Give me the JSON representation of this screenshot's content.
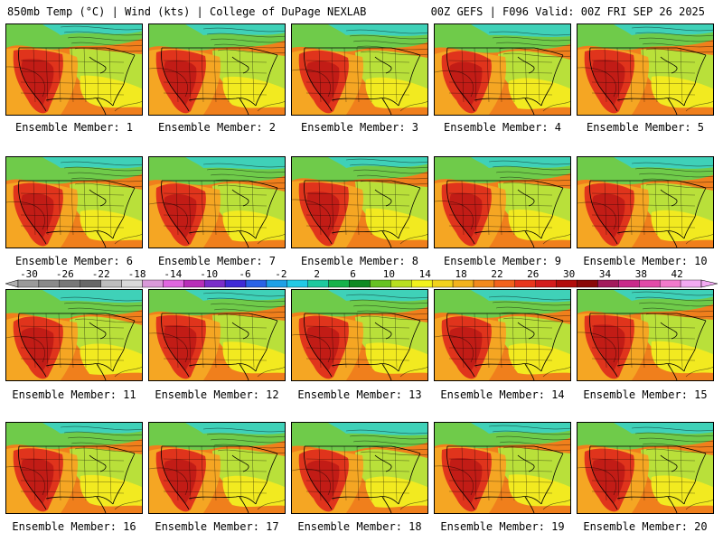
{
  "header": {
    "title_left": "850mb Temp (°C) | Wind (kts) | College of DuPage NEXLAB",
    "title_right": "00Z GEFS | F096 Valid: 00Z FRI SEP 26 2025"
  },
  "panels": [
    {
      "label": "Ensemble Member: 1"
    },
    {
      "label": "Ensemble Member: 2"
    },
    {
      "label": "Ensemble Member: 3"
    },
    {
      "label": "Ensemble Member: 4"
    },
    {
      "label": "Ensemble Member: 5"
    },
    {
      "label": "Ensemble Member: 6"
    },
    {
      "label": "Ensemble Member: 7"
    },
    {
      "label": "Ensemble Member: 8"
    },
    {
      "label": "Ensemble Member: 9"
    },
    {
      "label": "Ensemble Member: 10"
    },
    {
      "label": "Ensemble Member: 11"
    },
    {
      "label": "Ensemble Member: 12"
    },
    {
      "label": "Ensemble Member: 13"
    },
    {
      "label": "Ensemble Member: 14"
    },
    {
      "label": "Ensemble Member: 15"
    },
    {
      "label": "Ensemble Member: 16"
    },
    {
      "label": "Ensemble Member: 17"
    },
    {
      "label": "Ensemble Member: 18"
    },
    {
      "label": "Ensemble Member: 19"
    },
    {
      "label": "Ensemble Member: 20"
    }
  ],
  "colorbar": {
    "ticks": [
      "-30",
      "-26",
      "-22",
      "-18",
      "-14",
      "-10",
      "-6",
      "-2",
      "2",
      "6",
      "10",
      "14",
      "18",
      "22",
      "26",
      "30",
      "34",
      "38",
      "42"
    ],
    "colors": [
      "#9a9a9a",
      "#8a8a8a",
      "#787878",
      "#686868",
      "#bdbdbd",
      "#d9d9d9",
      "#d999d9",
      "#e066e0",
      "#b82eb8",
      "#7a2dc9",
      "#3f2ad6",
      "#2a62e6",
      "#1ea0e6",
      "#22c9e6",
      "#1ec99e",
      "#16b24a",
      "#0e8a22",
      "#66c222",
      "#b8e020",
      "#f2f21c",
      "#f2d21c",
      "#f2b21c",
      "#f28a1c",
      "#f2621c",
      "#e8361c",
      "#d31c1c",
      "#b20c0c",
      "#8a0808",
      "#a31a5c",
      "#c92a8a",
      "#e24aa8",
      "#f27acb",
      "#f2aaf2"
    ]
  },
  "map_colors": {
    "cold_teal": "#3fd1b8",
    "green": "#6fcb4a",
    "yellow_green": "#b9e03a",
    "yellow": "#f2ea20",
    "orange": "#f5a623",
    "dark_orange": "#f07f1c",
    "red": "#e0341c",
    "dark_red": "#c21c16",
    "line": "#000000"
  }
}
